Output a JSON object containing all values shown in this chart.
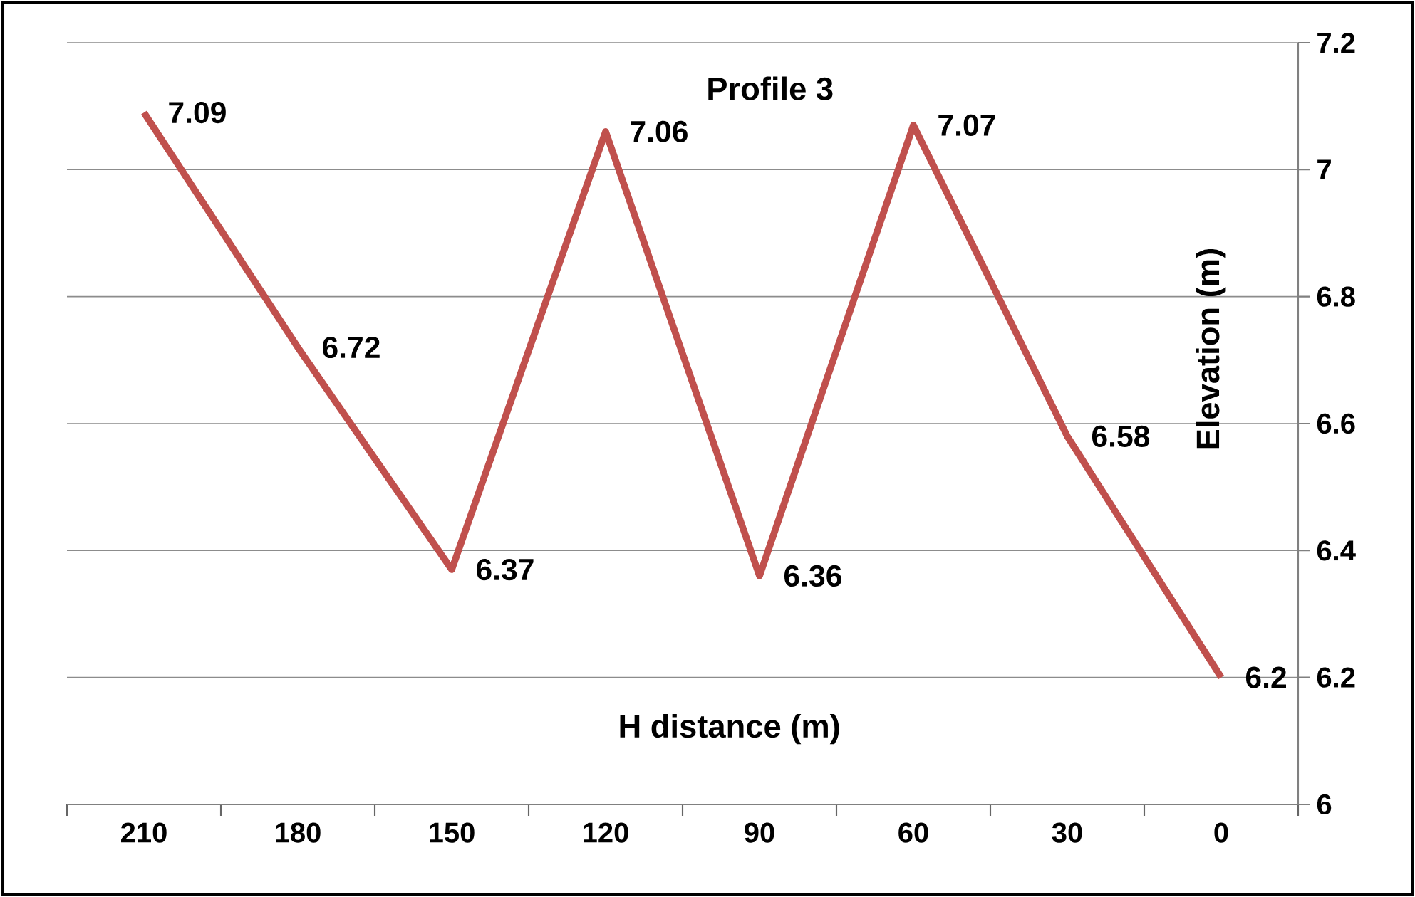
{
  "chart_data": {
    "type": "line",
    "title": "Profile 3",
    "xlabel": "H distance (m)",
    "ylabel": "Elevation (m)",
    "categories": [
      "210",
      "180",
      "150",
      "120",
      "90",
      "60",
      "30",
      "0"
    ],
    "series": [
      {
        "color": "#c0504d",
        "values": [
          7.09,
          6.72,
          6.37,
          7.06,
          6.36,
          7.07,
          6.58,
          6.2
        ]
      }
    ],
    "ylim": [
      6,
      7.2
    ],
    "yticks": [
      6,
      6.2,
      6.4,
      6.6,
      6.8,
      7,
      7.2
    ],
    "grid": "y",
    "data_labels": true,
    "marker": "none",
    "line_style": "solid"
  }
}
